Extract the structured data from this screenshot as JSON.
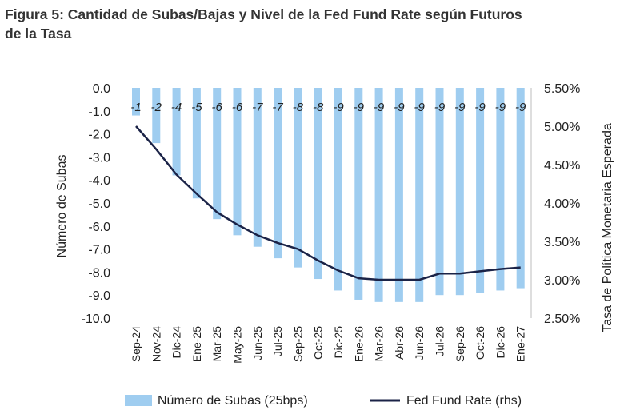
{
  "title_line1": "Figura 5: Cantidad de Subas/Bajas y Nivel de la Fed Fund Rate según Futuros",
  "title_line2": "de la Tasa",
  "colors": {
    "bar": "#9fcdf0",
    "line": "#1b2347",
    "text": "#222222"
  },
  "chart_data": {
    "type": "bar",
    "title": "Figura 5: Cantidad de Subas/Bajas y Nivel de la Fed Fund Rate según Futuros de la Tasa",
    "categories": [
      "Sep-24",
      "Nov-24",
      "Dic-24",
      "Ene-25",
      "Mar-25",
      "May-25",
      "Jun-25",
      "Jul-25",
      "Sep-25",
      "Oct-25",
      "Dic-25",
      "Ene-26",
      "Mar-26",
      "Abr-26",
      "Jun-26",
      "Jul-26",
      "Sep-26",
      "Oct-26",
      "Dic-26",
      "Ene-27"
    ],
    "ylabel": "Número de Subas",
    "y2label": "Tasa de Política Monetaria Esperada",
    "ylim": [
      -10,
      0
    ],
    "y2lim": [
      2.5,
      5.5
    ],
    "yticks": [
      "0.0",
      "-1.0",
      "-2.0",
      "-3.0",
      "-4.0",
      "-5.0",
      "-6.0",
      "-7.0",
      "-8.0",
      "-9.0",
      "-10.0"
    ],
    "y2ticks": [
      "5.50%",
      "5.00%",
      "4.50%",
      "4.00%",
      "3.50%",
      "3.00%",
      "2.50%"
    ],
    "grid": false,
    "legend": "bottom",
    "series": [
      {
        "name": "Número de Subas (25bps)",
        "type": "bar",
        "axis": "left",
        "values": [
          -1.2,
          -2.4,
          -3.8,
          -4.8,
          -5.7,
          -6.4,
          -6.9,
          -7.4,
          -7.8,
          -8.3,
          -8.8,
          -9.2,
          -9.3,
          -9.3,
          -9.3,
          -9.0,
          -9.0,
          -8.9,
          -8.8,
          -8.7
        ],
        "labels": [
          "-1",
          "-2",
          "-4",
          "-5",
          "-6",
          "-6",
          "-7",
          "-7",
          "-8",
          "-8",
          "-9",
          "-9",
          "-9",
          "-9",
          "-9",
          "-9",
          "-9",
          "-9",
          "-9",
          "-9"
        ]
      },
      {
        "name": "Fed Fund Rate (rhs)",
        "type": "line",
        "axis": "right",
        "values": [
          5.0,
          4.7,
          4.37,
          4.12,
          3.88,
          3.72,
          3.58,
          3.48,
          3.4,
          3.25,
          3.12,
          3.02,
          3.0,
          3.0,
          3.0,
          3.08,
          3.08,
          3.11,
          3.14,
          3.16
        ]
      }
    ]
  }
}
